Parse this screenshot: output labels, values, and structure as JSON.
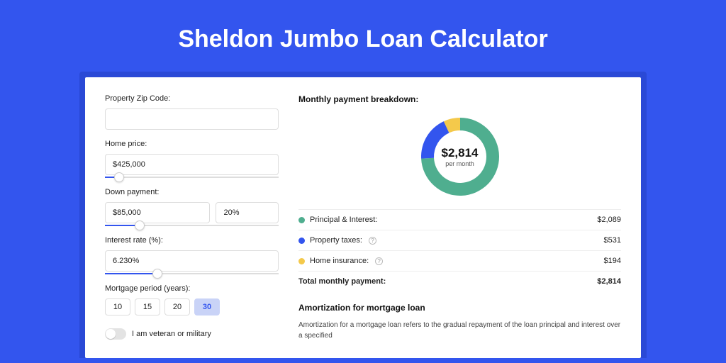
{
  "hero": {
    "title": "Sheldon Jumbo Loan Calculator"
  },
  "colors": {
    "page_bg": "#3355ee",
    "accent": "#3355ee",
    "donut_green": "#4fae8f",
    "donut_blue": "#3355ee",
    "donut_yellow": "#f4c94b"
  },
  "form": {
    "zip": {
      "label": "Property Zip Code:",
      "value": ""
    },
    "price": {
      "label": "Home price:",
      "value": "$425,000",
      "slider_pct": 8
    },
    "down": {
      "label": "Down payment:",
      "value": "$85,000",
      "pct": "20%",
      "slider_pct": 20
    },
    "rate": {
      "label": "Interest rate (%):",
      "value": "6.230%",
      "slider_pct": 30
    },
    "period": {
      "label": "Mortgage period (years):",
      "options": [
        "10",
        "15",
        "20",
        "30"
      ],
      "selected": "30"
    },
    "veteran": {
      "label": "I am veteran or military",
      "on": false
    }
  },
  "breakdown": {
    "title": "Monthly payment breakdown:",
    "center_value": "$2,814",
    "center_sub": "per month",
    "donut": {
      "type": "donut",
      "outer_radius": 55,
      "inner_radius": 37,
      "slices": [
        {
          "label": "Principal & Interest:",
          "value": 2089,
          "value_str": "$2,089",
          "color": "#4fae8f",
          "has_info": false
        },
        {
          "label": "Property taxes:",
          "value": 531,
          "value_str": "$531",
          "color": "#3355ee",
          "has_info": true
        },
        {
          "label": "Home insurance:",
          "value": 194,
          "value_str": "$194",
          "color": "#f4c94b",
          "has_info": true
        }
      ]
    },
    "total": {
      "label": "Total monthly payment:",
      "value_str": "$2,814"
    }
  },
  "amort": {
    "title": "Amortization for mortgage loan",
    "text": "Amortization for a mortgage loan refers to the gradual repayment of the loan principal and interest over a specified"
  }
}
